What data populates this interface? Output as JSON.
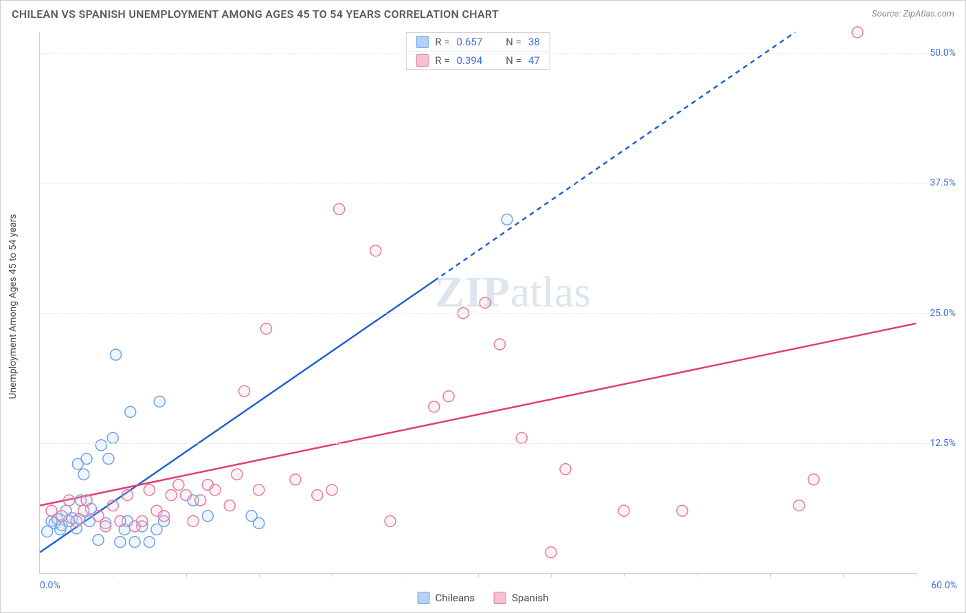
{
  "title": "CHILEAN VS SPANISH UNEMPLOYMENT AMONG AGES 45 TO 54 YEARS CORRELATION CHART",
  "source_label": "Source: ZipAtlas.com",
  "y_axis_title": "Unemployment Among Ages 45 to 54 years",
  "watermark_zip": "ZIP",
  "watermark_atlas": "atlas",
  "chart": {
    "type": "scatter",
    "xlim": [
      0,
      60
    ],
    "ylim": [
      0,
      52
    ],
    "x_tick_step": 5,
    "y_gridlines": [
      12.5,
      25.0,
      37.5,
      50.0
    ],
    "y_tick_labels": [
      "12.5%",
      "25.0%",
      "37.5%",
      "50.0%"
    ],
    "x_start_label": "0.0%",
    "x_end_label": "60.0%",
    "background_color": "#ffffff",
    "grid_color": "#e6e6e6",
    "axis_color": "#cfcfcf",
    "marker_radius": 8,
    "marker_stroke_width": 1.5,
    "marker_fill_opacity": 0.22,
    "series": [
      {
        "id": "chileans",
        "label": "Chileans",
        "color_stroke": "#6ea3e8",
        "color_fill": "#b6d1f2",
        "trend_color": "#1f5fd0",
        "trend_width": 2.5,
        "trend_dash_solid_until_x": 27,
        "trend_y_at_x0": 2.0,
        "trend_y_at_x60": 60.0,
        "R": "0.657",
        "N": "38",
        "points": [
          [
            0.5,
            4.0
          ],
          [
            0.8,
            5.0
          ],
          [
            1.0,
            4.8
          ],
          [
            1.2,
            5.2
          ],
          [
            1.4,
            4.2
          ],
          [
            1.5,
            4.6
          ],
          [
            1.8,
            6.0
          ],
          [
            2.0,
            5.0
          ],
          [
            2.2,
            5.3
          ],
          [
            2.5,
            4.3
          ],
          [
            2.6,
            10.5
          ],
          [
            2.7,
            5.2
          ],
          [
            2.8,
            7.0
          ],
          [
            3.0,
            9.5
          ],
          [
            3.2,
            11.0
          ],
          [
            3.4,
            5.0
          ],
          [
            3.5,
            6.2
          ],
          [
            4.0,
            3.2
          ],
          [
            4.2,
            12.3
          ],
          [
            4.5,
            4.8
          ],
          [
            4.7,
            11.0
          ],
          [
            5.0,
            13.0
          ],
          [
            5.2,
            21.0
          ],
          [
            5.5,
            3.0
          ],
          [
            5.8,
            4.2
          ],
          [
            6.0,
            5.0
          ],
          [
            6.2,
            15.5
          ],
          [
            6.5,
            3.0
          ],
          [
            7.0,
            4.5
          ],
          [
            7.5,
            3.0
          ],
          [
            8.0,
            4.2
          ],
          [
            8.2,
            16.5
          ],
          [
            8.5,
            5.0
          ],
          [
            10.5,
            7.0
          ],
          [
            11.5,
            5.5
          ],
          [
            14.5,
            5.5
          ],
          [
            15.0,
            4.8
          ],
          [
            32.0,
            34.0
          ]
        ]
      },
      {
        "id": "spanish",
        "label": "Spanish",
        "color_stroke": "#e77aa0",
        "color_fill": "#f6c2d3",
        "trend_color": "#e23d74",
        "trend_width": 2.5,
        "trend_dash_solid_until_x": 60,
        "trend_y_at_x0": 6.5,
        "trend_y_at_x60": 24.0,
        "R": "0.394",
        "N": "47",
        "points": [
          [
            0.8,
            6.0
          ],
          [
            1.5,
            5.5
          ],
          [
            2.0,
            7.0
          ],
          [
            2.5,
            5.0
          ],
          [
            3.0,
            6.0
          ],
          [
            3.2,
            7.0
          ],
          [
            4.0,
            5.5
          ],
          [
            4.5,
            4.5
          ],
          [
            5.0,
            6.5
          ],
          [
            5.5,
            5.0
          ],
          [
            6.0,
            7.5
          ],
          [
            6.5,
            4.5
          ],
          [
            7.0,
            5.0
          ],
          [
            7.5,
            8.0
          ],
          [
            8.0,
            6.0
          ],
          [
            8.5,
            5.5
          ],
          [
            9.0,
            7.5
          ],
          [
            9.5,
            8.5
          ],
          [
            10.0,
            7.5
          ],
          [
            10.5,
            5.0
          ],
          [
            11.0,
            7.0
          ],
          [
            11.5,
            8.5
          ],
          [
            12.0,
            8.0
          ],
          [
            13.0,
            6.5
          ],
          [
            13.5,
            9.5
          ],
          [
            14.0,
            17.5
          ],
          [
            15.0,
            8.0
          ],
          [
            15.5,
            23.5
          ],
          [
            17.5,
            9.0
          ],
          [
            19.0,
            7.5
          ],
          [
            20.0,
            8.0
          ],
          [
            20.5,
            35.0
          ],
          [
            23.0,
            31.0
          ],
          [
            24.0,
            5.0
          ],
          [
            27.0,
            16.0
          ],
          [
            28.0,
            17.0
          ],
          [
            29.0,
            25.0
          ],
          [
            30.5,
            26.0
          ],
          [
            31.5,
            22.0
          ],
          [
            33.0,
            13.0
          ],
          [
            35.0,
            2.0
          ],
          [
            36.0,
            10.0
          ],
          [
            40.0,
            6.0
          ],
          [
            44.0,
            6.0
          ],
          [
            52.0,
            6.5
          ],
          [
            53.0,
            9.0
          ],
          [
            56.0,
            52.0
          ]
        ]
      }
    ]
  },
  "stats_box": {
    "r_label": "R =",
    "n_label": "N ="
  },
  "legend": {
    "items": [
      "Chileans",
      "Spanish"
    ]
  }
}
